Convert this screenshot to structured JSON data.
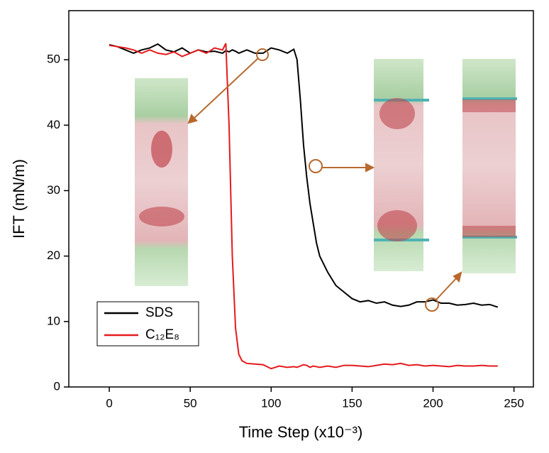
{
  "chart_data": {
    "type": "line",
    "x_label": "Time Step (x10⁻³)",
    "y_label": "IFT (mN/m)",
    "x": [
      0,
      5,
      10,
      15,
      20,
      25,
      30,
      35,
      40,
      45,
      50,
      55,
      60,
      65,
      70,
      72,
      74,
      76,
      78,
      80,
      82,
      85,
      90,
      95,
      100,
      105,
      110,
      114,
      116,
      118,
      120,
      122,
      124,
      126,
      128,
      130,
      135,
      140,
      145,
      150,
      155,
      160,
      165,
      170,
      175,
      180,
      185,
      190,
      195,
      200,
      205,
      210,
      215,
      220,
      225,
      230,
      235,
      240
    ],
    "series": [
      {
        "name": "SDS",
        "color": "#000000",
        "values": [
          52.3,
          52,
          51.5,
          51,
          51.5,
          51.8,
          52.4,
          51.5,
          51.2,
          51.8,
          51,
          51.5,
          51.2,
          51.3,
          51,
          51.4,
          51.2,
          51.5,
          51.3,
          51,
          51.2,
          51.5,
          51,
          51,
          51.8,
          51.5,
          51,
          51.6,
          50,
          44,
          37,
          32,
          28,
          25,
          22,
          20,
          17.5,
          15.5,
          14.5,
          13.5,
          13,
          13.2,
          12.8,
          13,
          12.5,
          12.3,
          12.5,
          13,
          13,
          13.3,
          12.8,
          12.8,
          12.5,
          12.6,
          12.8,
          12.5,
          12.6,
          12.2
        ]
      },
      {
        "name": "C₁₂E₈",
        "color": "#e41a1c",
        "values": [
          52.2,
          52,
          51.8,
          51.5,
          51,
          51.5,
          51,
          50.8,
          51.2,
          50.5,
          51,
          51.5,
          51,
          51.8,
          51.5,
          52.5,
          40,
          20,
          9,
          5,
          4,
          3.6,
          3.5,
          3.4,
          2.8,
          3.2,
          3,
          3.1,
          3,
          3.2,
          3.4,
          3.3,
          3,
          3.2,
          3.1,
          3,
          3.2,
          3,
          3.3,
          3.3,
          3.2,
          3.1,
          3.3,
          3.5,
          3.4,
          3.6,
          3.3,
          3.4,
          3.2,
          3.3,
          3.2,
          3.1,
          3.3,
          3.2,
          3.2,
          3.3,
          3.2,
          3.2
        ]
      }
    ],
    "xlim": [
      -25,
      262
    ],
    "ylim": [
      0,
      57.5
    ],
    "xticks": [
      0,
      50,
      100,
      150,
      200,
      250
    ],
    "yticks": [
      0,
      10,
      20,
      30,
      40,
      50
    ],
    "legend": "lower-left"
  }
}
